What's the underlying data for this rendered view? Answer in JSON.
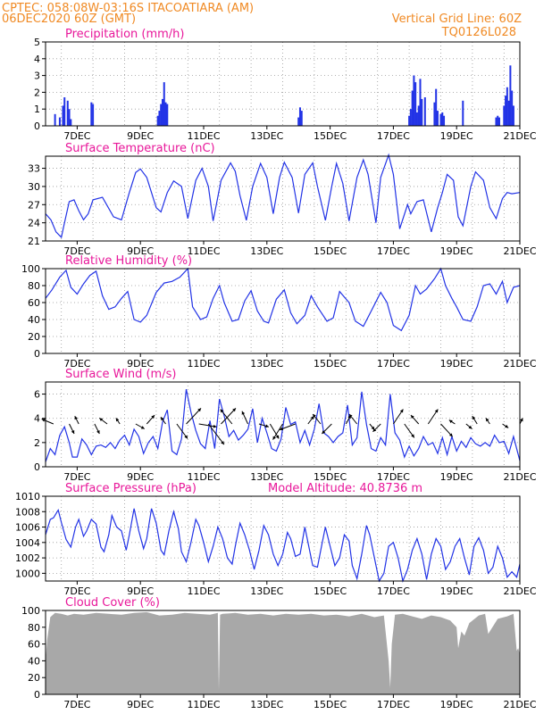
{
  "header": {
    "line1_left": "CPTEC:   058:08W-03:16S  ITACOATIARA (AM)",
    "line1_right": "Vertical Grid Line: 60Z",
    "line2_left": "06DEC2020 60Z (GMT)",
    "line2_right": "TQ0126L028"
  },
  "colors": {
    "header": "#f08a24",
    "title": "#e8179a",
    "series": "#2233e6",
    "cloud": "#a8a8a8",
    "grid": "#999999",
    "arrow": "#000000"
  },
  "x_axis": {
    "start_day": 6.0,
    "end_day": 21.0,
    "tick_days": [
      7,
      9,
      11,
      13,
      15,
      17,
      19,
      21
    ],
    "tick_labels": [
      "7DEC",
      "9DEC",
      "11DEC",
      "13DEC",
      "15DEC",
      "17DEC",
      "19DEC",
      "21DEC"
    ],
    "grid_days": [
      6.5,
      7.5,
      8.5,
      9.5,
      10.5,
      11.5,
      12.5,
      13.5,
      14.5,
      15.5,
      16.5,
      17.5,
      18.5,
      19.5,
      20.5
    ]
  },
  "chart_data": [
    {
      "id": "precip",
      "type": "bar",
      "title": "Precipitation (mm/h)",
      "ylim": [
        0,
        5
      ],
      "yticks": [
        0,
        1,
        2,
        3,
        4,
        5
      ],
      "grid": true,
      "x": [
        6.3,
        6.45,
        6.55,
        6.6,
        6.7,
        6.75,
        6.8,
        7.45,
        7.5,
        9.55,
        9.6,
        9.65,
        9.7,
        9.75,
        9.8,
        9.85,
        14.0,
        14.05,
        14.1,
        17.5,
        17.55,
        17.6,
        17.65,
        17.7,
        17.75,
        17.8,
        17.85,
        17.9,
        18.0,
        18.3,
        18.35,
        18.4,
        18.5,
        18.55,
        18.6,
        19.2,
        20.25,
        20.3,
        20.35,
        20.5,
        20.55,
        20.6,
        20.65,
        20.7,
        20.75,
        20.8
      ],
      "values": [
        0.7,
        0.5,
        1.2,
        1.7,
        1.5,
        1.0,
        0.4,
        1.4,
        1.3,
        0.6,
        0.9,
        1.3,
        1.6,
        2.6,
        1.4,
        1.3,
        0.5,
        1.1,
        0.9,
        0.6,
        1.0,
        2.1,
        3.0,
        2.6,
        0.8,
        1.2,
        2.8,
        1.6,
        1.7,
        1.4,
        2.2,
        0.9,
        0.7,
        0.8,
        0.6,
        1.5,
        0.5,
        0.6,
        0.5,
        1.2,
        1.8,
        2.3,
        1.5,
        3.6,
        2.1,
        1.2
      ]
    },
    {
      "id": "temp",
      "type": "line",
      "title": "Surface Temperature (nC)",
      "ylim": [
        21,
        35
      ],
      "yticks": [
        21,
        24,
        27,
        30,
        33
      ],
      "grid": true,
      "x": [
        6.0,
        6.17,
        6.33,
        6.5,
        6.6,
        6.75,
        6.9,
        7.05,
        7.2,
        7.35,
        7.5,
        7.8,
        8.15,
        8.4,
        8.65,
        8.85,
        9.0,
        9.2,
        9.5,
        9.65,
        9.85,
        10.05,
        10.3,
        10.5,
        10.75,
        10.95,
        11.15,
        11.3,
        11.55,
        11.85,
        12.0,
        12.15,
        12.35,
        12.55,
        12.8,
        13.0,
        13.2,
        13.4,
        13.55,
        13.8,
        14.0,
        14.2,
        14.45,
        14.6,
        14.85,
        15.05,
        15.2,
        15.4,
        15.6,
        15.85,
        16.05,
        16.2,
        16.45,
        16.6,
        16.85,
        17.0,
        17.2,
        17.45,
        17.55,
        17.75,
        17.95,
        18.2,
        18.4,
        18.55,
        18.7,
        18.9,
        19.05,
        19.2,
        19.45,
        19.6,
        19.85,
        20.05,
        20.25,
        20.45,
        20.6,
        20.75,
        21.0
      ],
      "values": [
        25.5,
        24.5,
        22.5,
        21.6,
        24.0,
        27.5,
        27.8,
        26.0,
        24.5,
        25.5,
        27.8,
        28.2,
        25.0,
        24.5,
        29.0,
        32.3,
        32.9,
        31.5,
        26.5,
        25.8,
        29.0,
        30.9,
        30.0,
        24.7,
        31.0,
        33.0,
        30.0,
        24.3,
        31.0,
        33.9,
        32.5,
        28.5,
        24.4,
        30.0,
        33.8,
        31.5,
        25.5,
        31.5,
        34.0,
        31.5,
        25.6,
        32.0,
        33.9,
        30.0,
        24.4,
        30.0,
        33.8,
        30.5,
        24.3,
        31.5,
        34.4,
        32.0,
        24.0,
        31.5,
        35.2,
        32.0,
        23.0,
        27.0,
        25.5,
        27.5,
        27.8,
        22.5,
        26.5,
        29.0,
        32.0,
        31.0,
        25.0,
        23.5,
        30.0,
        32.4,
        31.0,
        26.5,
        24.7,
        28.0,
        29.0,
        28.8,
        29.0
      ]
    },
    {
      "id": "rh",
      "type": "line",
      "title": "Relative Humidity (%)",
      "ylim": [
        0,
        100
      ],
      "yticks": [
        0,
        20,
        40,
        60,
        80,
        100
      ],
      "grid": true,
      "x": [
        6.0,
        6.2,
        6.45,
        6.65,
        6.8,
        7.0,
        7.2,
        7.4,
        7.6,
        7.8,
        8.0,
        8.2,
        8.4,
        8.6,
        8.8,
        9.0,
        9.2,
        9.5,
        9.75,
        10.0,
        10.25,
        10.5,
        10.65,
        10.9,
        11.1,
        11.3,
        11.5,
        11.65,
        11.9,
        12.1,
        12.3,
        12.5,
        12.7,
        12.9,
        13.05,
        13.3,
        13.55,
        13.75,
        13.95,
        14.2,
        14.4,
        14.6,
        14.9,
        15.1,
        15.3,
        15.6,
        15.8,
        16.05,
        16.3,
        16.6,
        16.8,
        17.0,
        17.25,
        17.5,
        17.7,
        17.85,
        18.05,
        18.3,
        18.5,
        18.65,
        18.85,
        19.0,
        19.2,
        19.45,
        19.65,
        19.85,
        20.05,
        20.25,
        20.45,
        20.6,
        20.8,
        21.0
      ],
      "values": [
        65,
        75,
        90,
        98,
        78,
        70,
        82,
        92,
        97,
        68,
        52,
        55,
        65,
        73,
        40,
        37,
        45,
        72,
        83,
        85,
        90,
        100,
        55,
        40,
        43,
        65,
        80,
        60,
        38,
        40,
        62,
        74,
        50,
        38,
        36,
        64,
        75,
        48,
        35,
        45,
        68,
        55,
        38,
        42,
        73,
        60,
        38,
        32,
        50,
        72,
        60,
        33,
        27,
        45,
        80,
        70,
        76,
        88,
        100,
        80,
        65,
        55,
        40,
        38,
        55,
        80,
        82,
        70,
        85,
        60,
        78,
        80
      ]
    },
    {
      "id": "wind",
      "type": "line",
      "title": "Surface Wind (m/s)",
      "ylim": [
        0,
        7
      ],
      "yticks": [
        0,
        2,
        4,
        6
      ],
      "grid": true,
      "x": [
        6.0,
        6.15,
        6.3,
        6.45,
        6.6,
        6.75,
        6.85,
        7.0,
        7.15,
        7.3,
        7.45,
        7.6,
        7.75,
        7.9,
        8.05,
        8.2,
        8.35,
        8.5,
        8.65,
        8.8,
        8.95,
        9.1,
        9.25,
        9.4,
        9.55,
        9.7,
        9.85,
        10.0,
        10.15,
        10.3,
        10.45,
        10.6,
        10.75,
        10.9,
        11.05,
        11.2,
        11.35,
        11.5,
        11.65,
        11.8,
        11.95,
        12.1,
        12.25,
        12.4,
        12.55,
        12.7,
        12.85,
        13.0,
        13.15,
        13.3,
        13.45,
        13.6,
        13.75,
        13.9,
        14.05,
        14.2,
        14.35,
        14.5,
        14.65,
        14.8,
        14.95,
        15.1,
        15.25,
        15.4,
        15.55,
        15.7,
        15.85,
        16.0,
        16.15,
        16.3,
        16.45,
        16.6,
        16.75,
        16.9,
        17.05,
        17.2,
        17.35,
        17.5,
        17.65,
        17.8,
        17.95,
        18.1,
        18.25,
        18.4,
        18.55,
        18.7,
        18.85,
        19.0,
        19.15,
        19.3,
        19.45,
        19.6,
        19.75,
        19.9,
        20.05,
        20.2,
        20.35,
        20.5,
        20.65,
        20.8,
        20.95,
        21.0
      ],
      "values": [
        0.4,
        1.5,
        1.0,
        2.6,
        3.3,
        2.0,
        0.8,
        0.8,
        2.3,
        1.8,
        1.0,
        1.7,
        1.8,
        1.6,
        2.0,
        1.5,
        2.2,
        2.6,
        1.8,
        3.1,
        2.5,
        1.1,
        2.0,
        2.5,
        1.5,
        3.7,
        4.7,
        1.3,
        1.0,
        2.3,
        6.4,
        4.5,
        3.0,
        1.9,
        1.5,
        3.8,
        1.5,
        5.6,
        4.2,
        2.5,
        3.0,
        2.2,
        2.6,
        3.1,
        4.8,
        2.0,
        4.0,
        2.8,
        1.5,
        1.3,
        2.3,
        4.9,
        3.5,
        3.7,
        2.0,
        3.0,
        1.8,
        3.1,
        5.2,
        2.8,
        2.5,
        2.0,
        2.5,
        2.8,
        5.1,
        1.8,
        2.4,
        6.2,
        3.5,
        1.5,
        1.3,
        2.4,
        1.8,
        6.0,
        2.8,
        2.2,
        0.8,
        1.7,
        0.9,
        1.5,
        2.5,
        1.8,
        2.0,
        1.1,
        2.4,
        1.0,
        2.5,
        1.3,
        2.1,
        1.6,
        2.4,
        1.9,
        1.7,
        2.0,
        1.7,
        2.6,
        2.0,
        2.1,
        1.1,
        2.5,
        1.0,
        0.5
      ],
      "arrows": {
        "x": [
          6.25,
          6.75,
          7.05,
          7.55,
          7.95,
          8.35,
          8.85,
          9.2,
          9.8,
          10.15,
          10.45,
          10.85,
          11.15,
          11.55,
          11.9,
          12.4,
          12.75,
          13.1,
          13.5,
          13.9,
          14.3,
          14.7,
          15.05,
          15.5,
          15.85,
          16.25,
          16.6,
          17.0,
          17.35,
          17.8,
          18.1,
          18.5,
          18.95,
          19.3,
          19.65,
          20.05,
          20.45,
          21.0
        ],
        "u": [
          -1.2,
          0.5,
          -0.4,
          0.5,
          -0.8,
          -0.4,
          0.9,
          0.8,
          -0.5,
          1.1,
          1.5,
          1.8,
          1.6,
          1.5,
          -1.2,
          -0.6,
          1.0,
          0.9,
          -1.0,
          -1.6,
          0.6,
          -0.8,
          -1.0,
          0.5,
          -0.8,
          0.5,
          -0.8,
          1.0,
          1.0,
          -0.8,
          1.0,
          1.2,
          -0.6,
          0.6,
          -0.5,
          -0.4,
          0.6,
          0.3
        ],
        "v": [
          0.5,
          -1.0,
          0.8,
          -1.0,
          0.6,
          0.6,
          -0.5,
          0.9,
          0.7,
          -1.5,
          1.6,
          -0.3,
          -2.1,
          1.6,
          1.5,
          1.3,
          -0.3,
          -1.5,
          -1.6,
          -0.6,
          0.8,
          1.0,
          -1.0,
          0.9,
          1.0,
          -0.6,
          -0.8,
          1.5,
          -1.4,
          0.9,
          1.5,
          -1.3,
          0.4,
          -0.5,
          0.8,
          0.6,
          -0.4,
          0.6
        ]
      }
    },
    {
      "id": "pres",
      "type": "line",
      "title": "Surface Pressure (hPa)",
      "annotation": "Model Altitude: 40.8736 m",
      "ylim": [
        999,
        1010
      ],
      "yticks": [
        1000,
        1002,
        1004,
        1006,
        1008,
        1010
      ],
      "grid": true,
      "x": [
        6.0,
        6.15,
        6.25,
        6.4,
        6.5,
        6.65,
        6.8,
        6.95,
        7.05,
        7.2,
        7.3,
        7.45,
        7.6,
        7.75,
        7.85,
        8.0,
        8.1,
        8.25,
        8.4,
        8.55,
        8.65,
        8.8,
        8.95,
        9.1,
        9.2,
        9.35,
        9.5,
        9.65,
        9.75,
        9.9,
        10.05,
        10.2,
        10.3,
        10.45,
        10.6,
        10.75,
        10.85,
        11.0,
        11.15,
        11.3,
        11.45,
        11.6,
        11.75,
        11.9,
        12.0,
        12.15,
        12.3,
        12.45,
        12.6,
        12.75,
        12.9,
        13.05,
        13.2,
        13.35,
        13.5,
        13.65,
        13.75,
        13.9,
        14.05,
        14.2,
        14.3,
        14.45,
        14.6,
        14.75,
        14.85,
        15.0,
        15.15,
        15.3,
        15.45,
        15.6,
        15.7,
        15.85,
        16.0,
        16.15,
        16.25,
        16.4,
        16.55,
        16.7,
        16.85,
        17.0,
        17.15,
        17.3,
        17.45,
        17.6,
        17.75,
        17.9,
        18.05,
        18.2,
        18.35,
        18.5,
        18.65,
        18.8,
        18.95,
        19.1,
        19.25,
        19.4,
        19.55,
        19.7,
        19.85,
        20.0,
        20.15,
        20.3,
        20.45,
        20.6,
        20.75,
        20.9,
        21.0
      ],
      "values": [
        1005.0,
        1007.0,
        1007.2,
        1008.2,
        1006.6,
        1004.4,
        1003.4,
        1006.0,
        1007.0,
        1004.8,
        1005.5,
        1007.0,
        1006.4,
        1003.4,
        1002.8,
        1005.0,
        1007.5,
        1006.0,
        1005.5,
        1003.0,
        1005.0,
        1008.4,
        1005.5,
        1003.2,
        1004.5,
        1008.4,
        1006.5,
        1003.0,
        1002.4,
        1005.5,
        1008.0,
        1005.8,
        1002.8,
        1001.5,
        1004.0,
        1007.0,
        1006.2,
        1004.0,
        1001.5,
        1003.5,
        1006.0,
        1004.5,
        1002.0,
        1001.2,
        1003.5,
        1006.5,
        1005.0,
        1003.0,
        1000.5,
        1003.0,
        1006.2,
        1005.0,
        1002.5,
        1001.0,
        1002.5,
        1005.3,
        1004.5,
        1002.2,
        1002.5,
        1006.0,
        1004.0,
        1001.0,
        1000.8,
        1004.0,
        1006.0,
        1003.5,
        1001.0,
        1002.0,
        1005.0,
        1004.2,
        1001.0,
        999.3,
        1002.5,
        1006.2,
        1005.0,
        1002.0,
        999.0,
        1000.0,
        1003.5,
        1004.0,
        1002.0,
        999.0,
        1000.5,
        1003.0,
        1004.5,
        1002.5,
        999.2,
        1002.5,
        1004.5,
        1003.5,
        1000.5,
        1001.5,
        1003.5,
        1004.5,
        1002.0,
        999.8,
        1003.5,
        1004.6,
        1003.0,
        1000.0,
        1000.8,
        1003.5,
        1002.0,
        999.5,
        1000.2,
        999.5,
        1001.2
      ]
    },
    {
      "id": "cloud",
      "type": "area",
      "title": "Cloud Cover (%)",
      "ylim": [
        0,
        100
      ],
      "yticks": [
        0,
        20,
        40,
        60,
        80,
        100
      ],
      "grid": false,
      "x": [
        6.0,
        6.05,
        6.15,
        6.3,
        6.5,
        6.7,
        6.9,
        7.2,
        7.6,
        8.0,
        8.4,
        8.8,
        9.2,
        9.6,
        10.0,
        10.4,
        10.8,
        11.2,
        11.45,
        11.48,
        11.52,
        11.6,
        12.0,
        12.4,
        12.8,
        13.2,
        13.6,
        14.0,
        14.4,
        14.8,
        15.2,
        15.6,
        16.0,
        16.4,
        16.7,
        16.85,
        16.9,
        16.95,
        17.05,
        17.3,
        17.6,
        17.9,
        18.2,
        18.5,
        18.8,
        19.0,
        19.05,
        19.15,
        19.25,
        19.4,
        19.7,
        19.9,
        20.0,
        20.3,
        20.6,
        20.8,
        20.9,
        20.95,
        21.0
      ],
      "values": [
        40,
        65,
        92,
        97,
        96,
        94,
        96,
        95,
        97,
        96,
        95,
        97,
        98,
        94,
        95,
        97,
        96,
        95,
        97,
        5,
        95,
        96,
        97,
        95,
        96,
        94,
        96,
        95,
        96,
        94,
        95,
        93,
        96,
        92,
        94,
        40,
        8,
        60,
        95,
        96,
        93,
        90,
        94,
        92,
        88,
        80,
        55,
        75,
        70,
        85,
        94,
        96,
        72,
        90,
        93,
        96,
        52,
        55,
        48
      ]
    }
  ]
}
